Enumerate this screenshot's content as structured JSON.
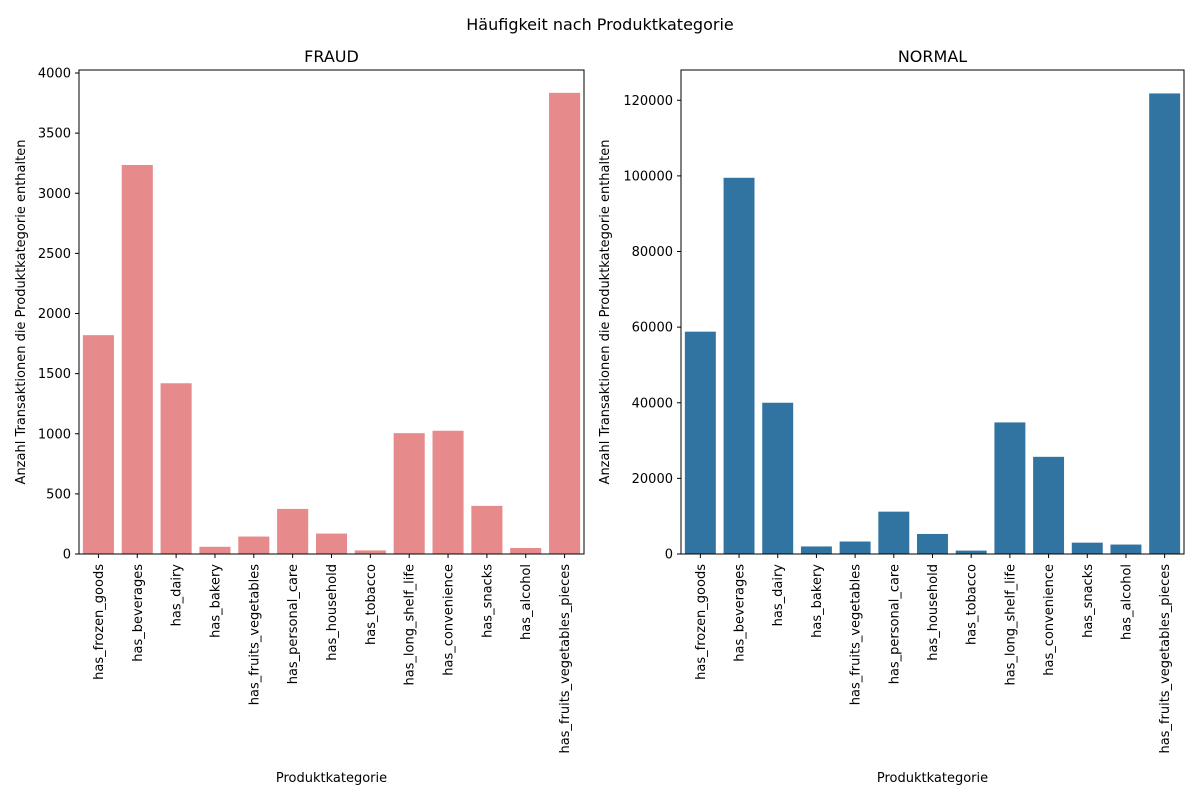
{
  "suptitle": "Häufigkeit nach Produktkategorie",
  "chart_data": [
    {
      "type": "bar",
      "title": "FRAUD",
      "xlabel": "Produktkategorie",
      "ylabel": "Anzahl Transaktionen die Produktkategorie enthalten",
      "categories": [
        "has_frozen_goods",
        "has_beverages",
        "has_dairy",
        "has_bakery",
        "has_fruits_vegetables",
        "has_personal_care",
        "has_household",
        "has_tobacco",
        "has_long_shelf_life",
        "has_convenience",
        "has_snacks",
        "has_alcohol",
        "has_fruits_vegetables_pieces"
      ],
      "values": [
        1820,
        3235,
        1420,
        60,
        145,
        375,
        170,
        30,
        1005,
        1025,
        400,
        50,
        3835
      ],
      "ylim": [
        0,
        4025
      ],
      "yticks": [
        0,
        500,
        1000,
        1500,
        2000,
        2500,
        3000,
        3500,
        4000
      ],
      "ytick_labels": [
        "0",
        "500",
        "1000",
        "1500",
        "2000",
        "2500",
        "3000",
        "3500",
        "4000"
      ],
      "color": "#e68a8c",
      "grid": false
    },
    {
      "type": "bar",
      "title": "NORMAL",
      "xlabel": "Produktkategorie",
      "ylabel": "Anzahl Transaktionen die Produktkategorie enthalten",
      "categories": [
        "has_frozen_goods",
        "has_beverages",
        "has_dairy",
        "has_bakery",
        "has_fruits_vegetables",
        "has_personal_care",
        "has_household",
        "has_tobacco",
        "has_long_shelf_life",
        "has_convenience",
        "has_snacks",
        "has_alcohol",
        "has_fruits_vegetables_pieces"
      ],
      "values": [
        58800,
        99500,
        40000,
        2000,
        3300,
        11200,
        5300,
        900,
        34800,
        25700,
        3000,
        2500,
        121800
      ],
      "ylim": [
        0,
        128000
      ],
      "yticks": [
        0,
        20000,
        40000,
        60000,
        80000,
        100000,
        120000
      ],
      "ytick_labels": [
        "0",
        "20000",
        "40000",
        "60000",
        "80000",
        "100000",
        "120000"
      ],
      "color": "#3274a1",
      "grid": false
    }
  ]
}
